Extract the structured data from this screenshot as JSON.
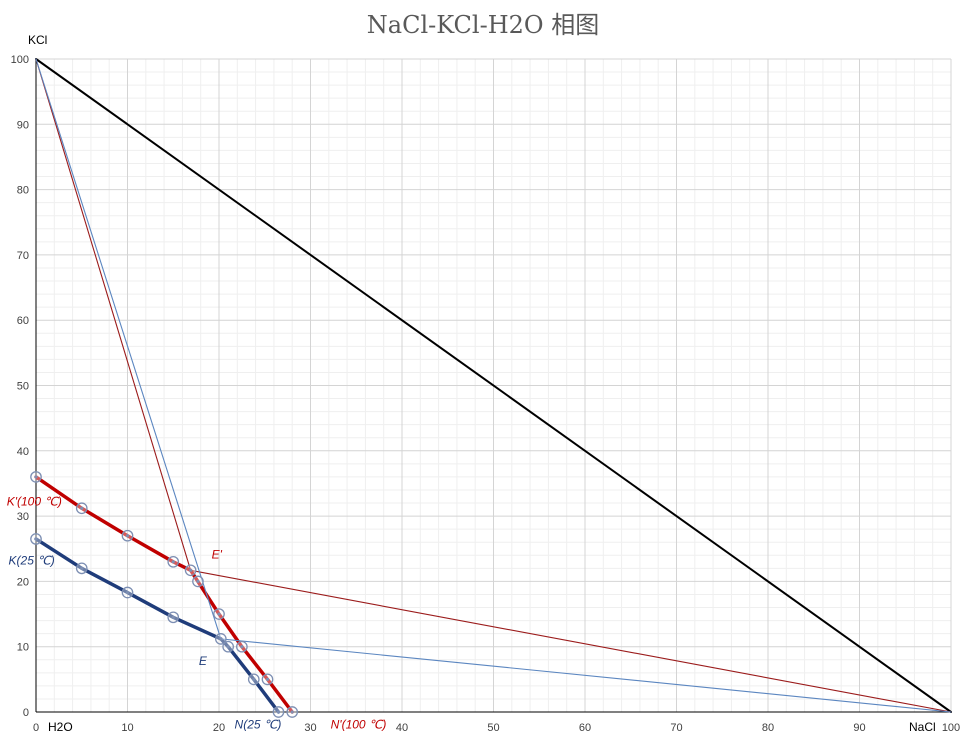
{
  "chart_data": {
    "type": "scatter",
    "title": "NaCl-KCl-H2O 相图",
    "xlim": [
      0,
      100
    ],
    "ylim": [
      0,
      100
    ],
    "x_ticks": [
      0,
      10,
      20,
      30,
      40,
      50,
      60,
      70,
      80,
      90,
      100
    ],
    "y_ticks": [
      0,
      10,
      20,
      30,
      40,
      50,
      60,
      70,
      80,
      90,
      100
    ],
    "grid": true,
    "minor_grid": true,
    "labels": {
      "y_axis_corner": "KCl",
      "x_left_corner": "H2O",
      "x_right_corner": "NaCl"
    },
    "colors": {
      "black": "#000000",
      "red": "#c00000",
      "blue": "#1f3c7a",
      "thin_red": "#9b1b1b",
      "thin_blue": "#5b86c0",
      "marker": "#7d8fb3"
    },
    "series": [
      {
        "style": "black",
        "points": [
          [
            0,
            100
          ],
          [
            100,
            0
          ]
        ]
      },
      {
        "style": "red",
        "points": [
          [
            0,
            36
          ],
          [
            5,
            31.2
          ],
          [
            10,
            27
          ],
          [
            15,
            23
          ],
          [
            16.9,
            21.7
          ],
          [
            20,
            15
          ],
          [
            22.5,
            10
          ],
          [
            25.3,
            5
          ],
          [
            28,
            0
          ]
        ]
      },
      {
        "style": "blue",
        "points": [
          [
            0,
            26.5
          ],
          [
            5,
            22
          ],
          [
            10,
            18.3
          ],
          [
            15,
            14.5
          ],
          [
            20.2,
            11.2
          ],
          [
            21,
            10
          ],
          [
            23.8,
            5
          ],
          [
            26.5,
            0
          ]
        ]
      },
      {
        "style": "thin_red",
        "points": [
          [
            0,
            100
          ],
          [
            16.9,
            21.7
          ],
          [
            100,
            0
          ]
        ]
      },
      {
        "style": "thin_blue",
        "points": [
          [
            0,
            100
          ],
          [
            20.2,
            11.2
          ],
          [
            100,
            0
          ]
        ]
      }
    ],
    "markers": [
      [
        0,
        36
      ],
      [
        5,
        31.2
      ],
      [
        10,
        27
      ],
      [
        15,
        23
      ],
      [
        16.9,
        21.7
      ],
      [
        17.7,
        20
      ],
      [
        20,
        15
      ],
      [
        22.5,
        10
      ],
      [
        25.3,
        5
      ],
      [
        28,
        0
      ],
      [
        0,
        26.5
      ],
      [
        5,
        22
      ],
      [
        10,
        18.3
      ],
      [
        15,
        14.5
      ],
      [
        20.2,
        11.2
      ],
      [
        21,
        10
      ],
      [
        23.8,
        5
      ],
      [
        26.5,
        0
      ]
    ],
    "annotations": [
      {
        "text": "K'(100 ℃)",
        "x": -3.2,
        "y": 31.6,
        "color": "red"
      },
      {
        "text": "K(25 ℃)",
        "x": -3.0,
        "y": 22.6,
        "color": "blue"
      },
      {
        "text": "E'",
        "x": 19.2,
        "y": 23.5,
        "color": "red"
      },
      {
        "text": "E",
        "x": 17.8,
        "y": 7.2,
        "color": "blue"
      },
      {
        "text": "N(25 ℃)",
        "x": 21.7,
        "y": -2.5,
        "color": "blue"
      },
      {
        "text": "N'(100 ℃)",
        "x": 32.2,
        "y": -2.5,
        "color": "red"
      }
    ]
  }
}
